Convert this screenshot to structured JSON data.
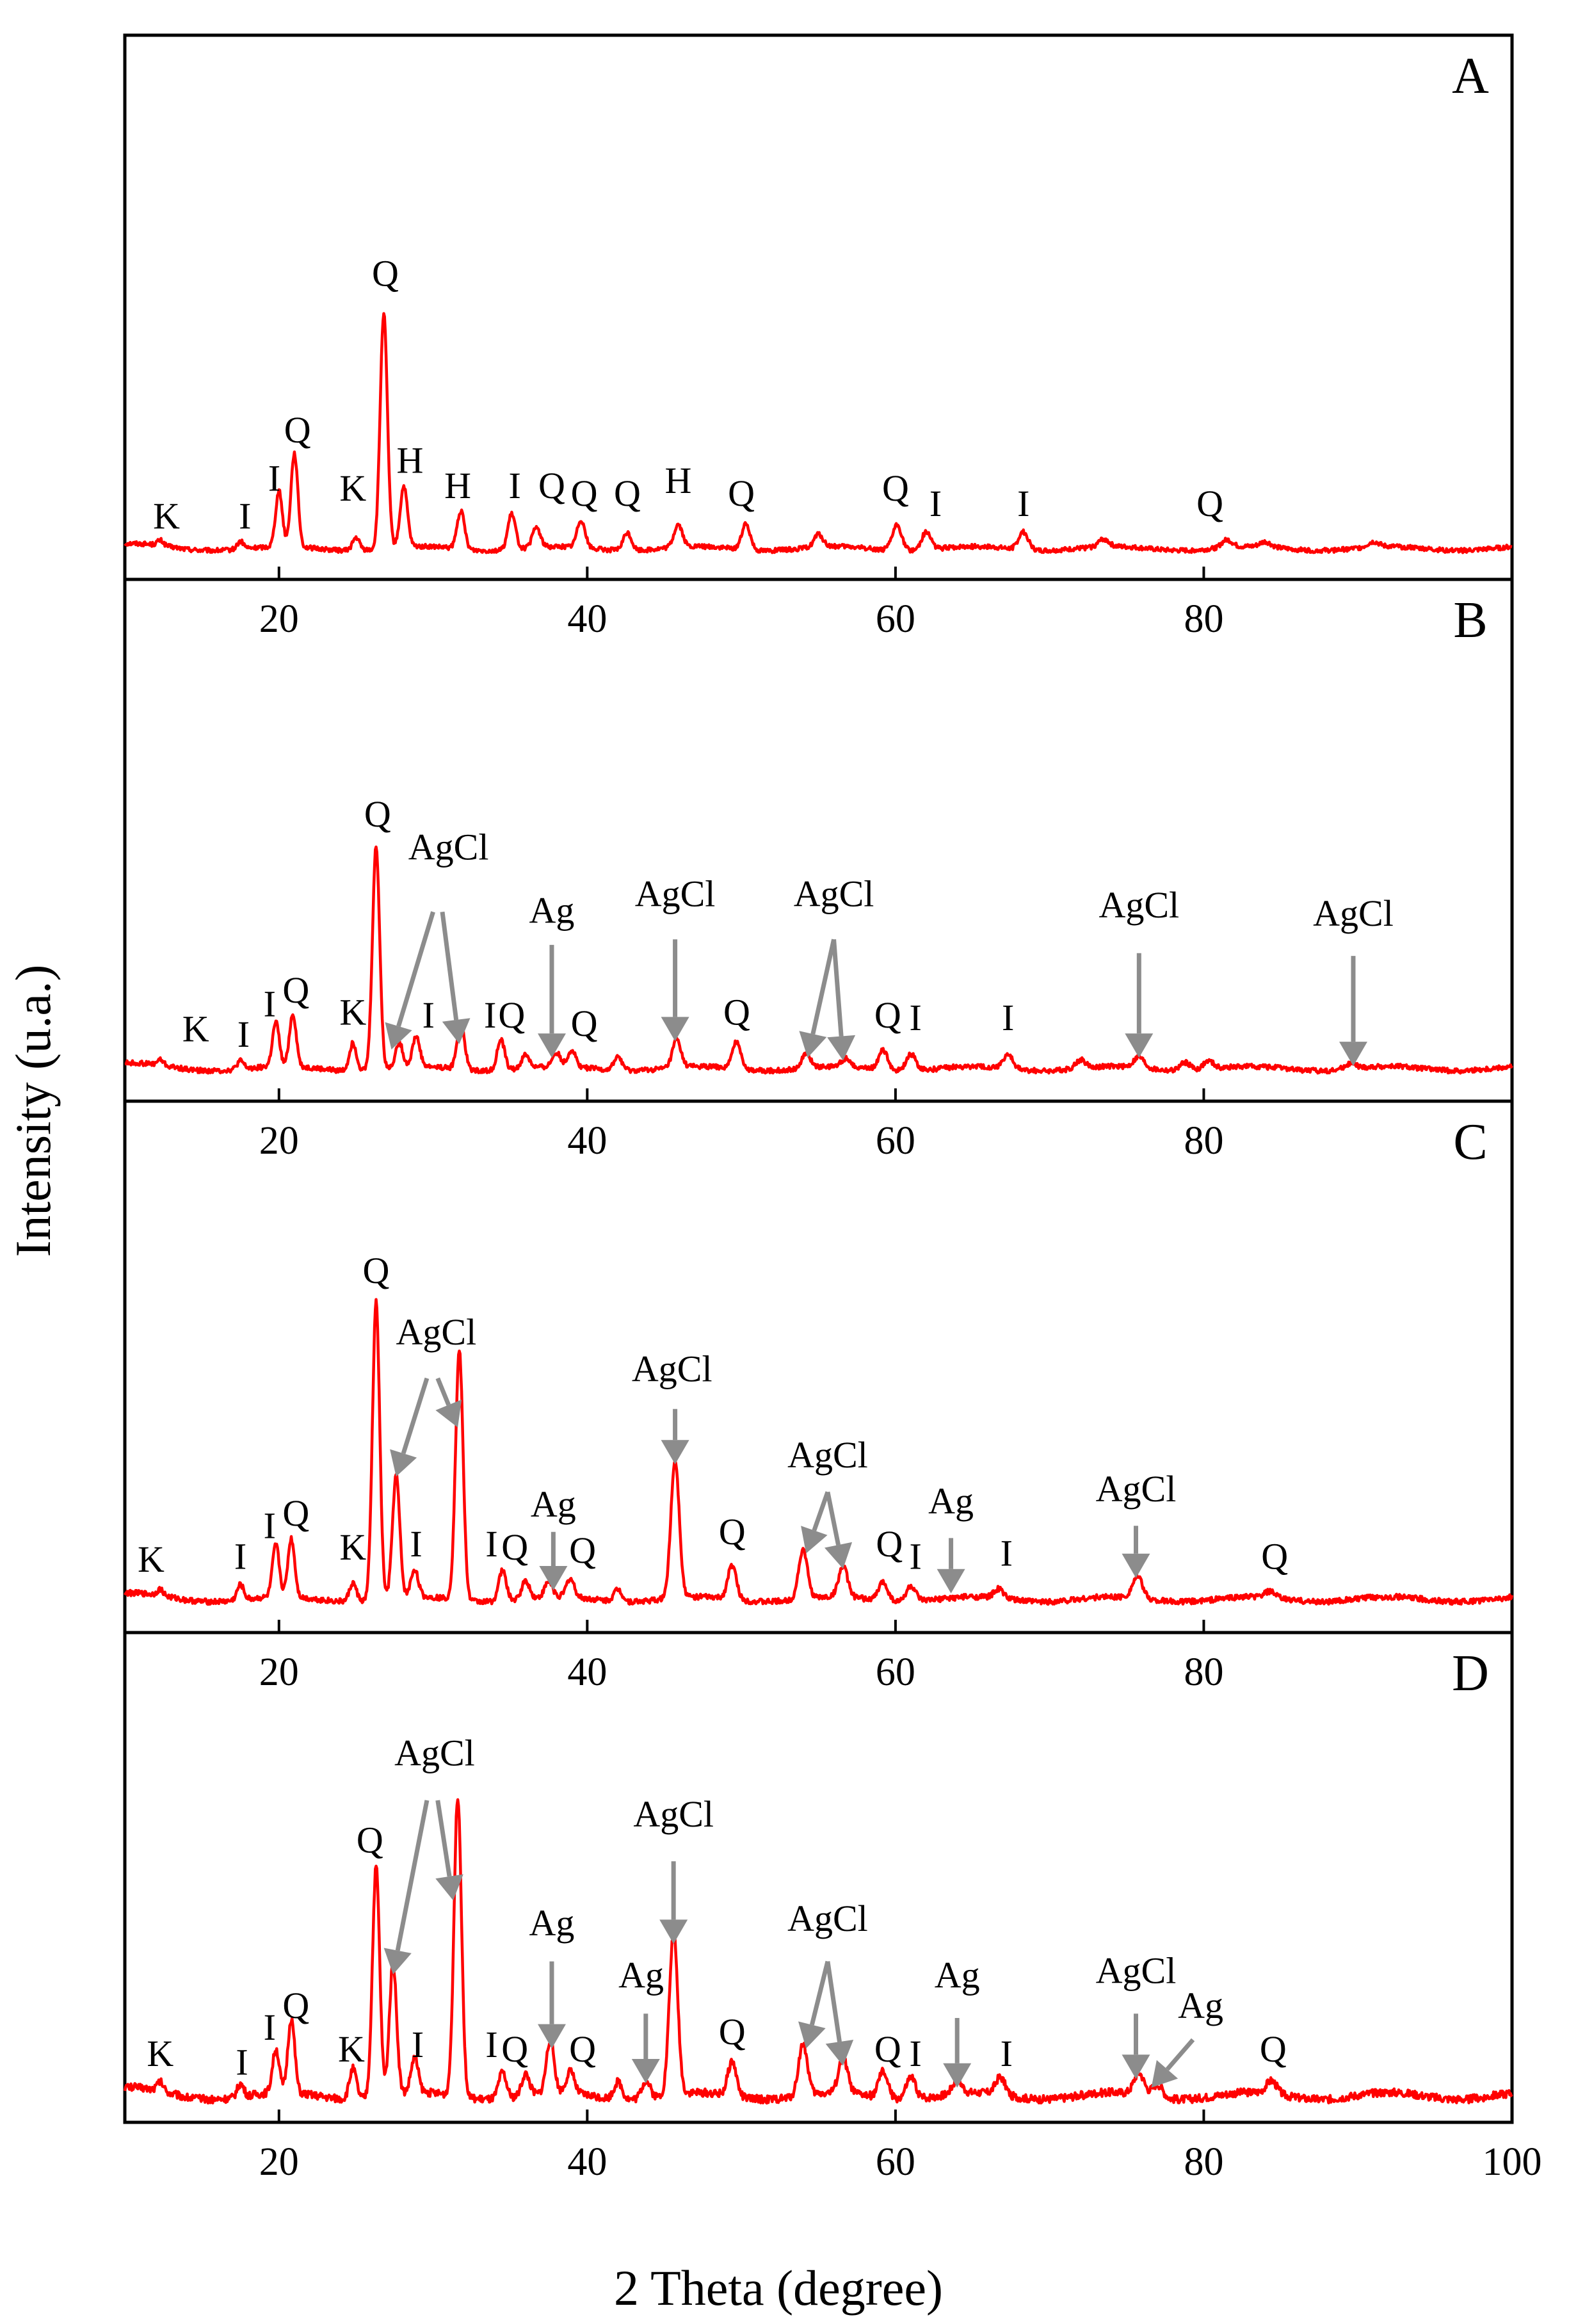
{
  "chart_data": {
    "type": "line",
    "x_range": [
      10,
      100
    ],
    "x_ticks": [
      "20",
      "40",
      "60",
      "80",
      "100"
    ],
    "xlabel": "2 Theta (degree)",
    "ylabel": "Intensity (u.a.)",
    "series_color": "#ff0000",
    "arrow_color": "#8c8c8c",
    "panels": [
      {
        "id": "A",
        "peaks": [
          {
            "x": 12.3,
            "h": 0.02
          },
          {
            "x": 17.5,
            "h": 0.03
          },
          {
            "x": 20.0,
            "h": 0.22
          },
          {
            "x": 21.0,
            "h": 0.37
          },
          {
            "x": 25.0,
            "h": 0.05
          },
          {
            "x": 26.8,
            "h": 0.93
          },
          {
            "x": 28.1,
            "h": 0.24
          },
          {
            "x": 31.8,
            "h": 0.15
          },
          {
            "x": 35.1,
            "h": 0.14
          },
          {
            "x": 36.7,
            "h": 0.08
          },
          {
            "x": 39.6,
            "h": 0.11
          },
          {
            "x": 42.6,
            "h": 0.07
          },
          {
            "x": 45.9,
            "h": 0.09
          },
          {
            "x": 50.3,
            "h": 0.1
          },
          {
            "x": 55.0,
            "h": 0.05
          },
          {
            "x": 60.1,
            "h": 0.1
          },
          {
            "x": 62.0,
            "h": 0.07
          },
          {
            "x": 68.3,
            "h": 0.07
          },
          {
            "x": 73.5,
            "h": 0.03
          },
          {
            "x": 81.5,
            "h": 0.03
          },
          {
            "x": 84.0,
            "h": 0.02
          },
          {
            "x": 91.0,
            "h": 0.02
          }
        ],
        "labels": [
          {
            "text": "K",
            "x": 12.7,
            "y": 0.1
          },
          {
            "text": "I",
            "x": 17.8,
            "y": 0.1
          },
          {
            "text": "I",
            "x": 19.7,
            "y": 0.25
          },
          {
            "text": "Q",
            "x": 21.2,
            "y": 0.44
          },
          {
            "text": "K",
            "x": 24.8,
            "y": 0.21
          },
          {
            "text": "Q",
            "x": 26.9,
            "y": 1.06
          },
          {
            "text": "H",
            "x": 28.5,
            "y": 0.32
          },
          {
            "text": "H",
            "x": 31.6,
            "y": 0.22
          },
          {
            "text": "I",
            "x": 35.3,
            "y": 0.22
          },
          {
            "text": "Q",
            "x": 37.7,
            "y": 0.22
          },
          {
            "text": "Q",
            "x": 39.8,
            "y": 0.19
          },
          {
            "text": "Q",
            "x": 42.6,
            "y": 0.19
          },
          {
            "text": "H",
            "x": 45.9,
            "y": 0.24
          },
          {
            "text": "Q",
            "x": 50.0,
            "y": 0.19
          },
          {
            "text": "Q",
            "x": 60.0,
            "y": 0.21
          },
          {
            "text": "I",
            "x": 62.6,
            "y": 0.15
          },
          {
            "text": "I",
            "x": 68.3,
            "y": 0.15
          },
          {
            "text": "Q",
            "x": 80.4,
            "y": 0.15
          }
        ],
        "arrows": []
      },
      {
        "id": "B",
        "peaks": [
          {
            "x": 12.3,
            "h": 0.02
          },
          {
            "x": 17.5,
            "h": 0.03
          },
          {
            "x": 19.8,
            "h": 0.16
          },
          {
            "x": 20.9,
            "h": 0.19
          },
          {
            "x": 24.8,
            "h": 0.1
          },
          {
            "x": 26.3,
            "h": 0.81
          },
          {
            "x": 27.8,
            "h": 0.09
          },
          {
            "x": 28.9,
            "h": 0.11
          },
          {
            "x": 31.8,
            "h": 0.17
          },
          {
            "x": 34.4,
            "h": 0.11
          },
          {
            "x": 36.0,
            "h": 0.05
          },
          {
            "x": 38.0,
            "h": 0.05
          },
          {
            "x": 39.0,
            "h": 0.06
          },
          {
            "x": 42.0,
            "h": 0.05
          },
          {
            "x": 45.8,
            "h": 0.1
          },
          {
            "x": 49.7,
            "h": 0.1
          },
          {
            "x": 54.2,
            "h": 0.05
          },
          {
            "x": 56.8,
            "h": 0.03
          },
          {
            "x": 59.2,
            "h": 0.07
          },
          {
            "x": 61.0,
            "h": 0.06
          },
          {
            "x": 67.3,
            "h": 0.05
          },
          {
            "x": 72.0,
            "h": 0.03
          },
          {
            "x": 75.8,
            "h": 0.04
          },
          {
            "x": 78.8,
            "h": 0.03
          },
          {
            "x": 80.3,
            "h": 0.03
          },
          {
            "x": 89.5,
            "h": 0.02
          }
        ],
        "labels": [
          {
            "text": "K",
            "x": 14.6,
            "y": 0.12
          },
          {
            "text": "I",
            "x": 17.7,
            "y": 0.1
          },
          {
            "text": "I",
            "x": 19.4,
            "y": 0.21
          },
          {
            "text": "Q",
            "x": 21.1,
            "y": 0.26
          },
          {
            "text": "K",
            "x": 24.8,
            "y": 0.18
          },
          {
            "text": "Q",
            "x": 26.4,
            "y": 0.9
          },
          {
            "text": "AgCl",
            "x": 31.0,
            "y": 0.78
          },
          {
            "text": "I",
            "x": 29.7,
            "y": 0.17
          },
          {
            "text": "I",
            "x": 33.7,
            "y": 0.17
          },
          {
            "text": "Q",
            "x": 35.1,
            "y": 0.17
          },
          {
            "text": "Ag",
            "x": 37.7,
            "y": 0.55
          },
          {
            "text": "Q",
            "x": 39.8,
            "y": 0.14
          },
          {
            "text": "AgCl",
            "x": 45.7,
            "y": 0.61
          },
          {
            "text": "Q",
            "x": 49.7,
            "y": 0.18
          },
          {
            "text": "AgCl",
            "x": 56.0,
            "y": 0.61
          },
          {
            "text": "Q",
            "x": 59.5,
            "y": 0.17
          },
          {
            "text": "I",
            "x": 61.3,
            "y": 0.16
          },
          {
            "text": "I",
            "x": 67.3,
            "y": 0.16
          },
          {
            "text": "AgCl",
            "x": 75.8,
            "y": 0.57
          },
          {
            "text": "AgCl",
            "x": 89.7,
            "y": 0.54
          }
        ],
        "arrows": [
          {
            "x1": 30.0,
            "y1": 0.59,
            "x2": 27.3,
            "y2": 0.09
          },
          {
            "x1": 30.6,
            "y1": 0.59,
            "x2": 31.7,
            "y2": 0.11
          },
          {
            "x1": 37.7,
            "y1": 0.47,
            "x2": 37.7,
            "y2": 0.06
          },
          {
            "x1": 45.7,
            "y1": 0.49,
            "x2": 45.7,
            "y2": 0.12
          },
          {
            "x1": 56.0,
            "y1": 0.49,
            "x2": 54.3,
            "y2": 0.06
          },
          {
            "x1": 56.0,
            "y1": 0.49,
            "x2": 56.6,
            "y2": 0.05
          },
          {
            "x1": 75.8,
            "y1": 0.44,
            "x2": 75.8,
            "y2": 0.06
          },
          {
            "x1": 89.7,
            "y1": 0.43,
            "x2": 89.7,
            "y2": 0.03
          }
        ]
      },
      {
        "id": "C",
        "peaks": [
          {
            "x": 12.3,
            "h": 0.02
          },
          {
            "x": 17.5,
            "h": 0.05
          },
          {
            "x": 19.8,
            "h": 0.17
          },
          {
            "x": 20.8,
            "h": 0.19
          },
          {
            "x": 24.8,
            "h": 0.06
          },
          {
            "x": 26.3,
            "h": 0.97
          },
          {
            "x": 27.6,
            "h": 0.4
          },
          {
            "x": 28.8,
            "h": 0.09
          },
          {
            "x": 31.7,
            "h": 0.81
          },
          {
            "x": 34.5,
            "h": 0.1
          },
          {
            "x": 36.0,
            "h": 0.06
          },
          {
            "x": 37.5,
            "h": 0.05
          },
          {
            "x": 38.9,
            "h": 0.06
          },
          {
            "x": 42.0,
            "h": 0.04
          },
          {
            "x": 45.7,
            "h": 0.45
          },
          {
            "x": 49.4,
            "h": 0.11
          },
          {
            "x": 54.0,
            "h": 0.16
          },
          {
            "x": 56.6,
            "h": 0.1
          },
          {
            "x": 59.2,
            "h": 0.06
          },
          {
            "x": 61.0,
            "h": 0.05
          },
          {
            "x": 66.7,
            "h": 0.03
          },
          {
            "x": 75.7,
            "h": 0.07
          },
          {
            "x": 84.3,
            "h": 0.02
          }
        ],
        "labels": [
          {
            "text": "K",
            "x": 11.7,
            "y": 0.11
          },
          {
            "text": "I",
            "x": 17.5,
            "y": 0.12
          },
          {
            "text": "I",
            "x": 19.4,
            "y": 0.22
          },
          {
            "text": "Q",
            "x": 21.1,
            "y": 0.26
          },
          {
            "text": "K",
            "x": 24.8,
            "y": 0.15
          },
          {
            "text": "Q",
            "x": 26.3,
            "y": 1.05
          },
          {
            "text": "AgCl",
            "x": 30.2,
            "y": 0.85
          },
          {
            "text": "I",
            "x": 28.9,
            "y": 0.16
          },
          {
            "text": "I",
            "x": 33.8,
            "y": 0.16
          },
          {
            "text": "Q",
            "x": 35.3,
            "y": 0.15
          },
          {
            "text": "Ag",
            "x": 37.8,
            "y": 0.29
          },
          {
            "text": "Q",
            "x": 39.7,
            "y": 0.14
          },
          {
            "text": "AgCl",
            "x": 45.5,
            "y": 0.73
          },
          {
            "text": "Q",
            "x": 49.4,
            "y": 0.2
          },
          {
            "text": "AgCl",
            "x": 55.6,
            "y": 0.45
          },
          {
            "text": "Q",
            "x": 59.6,
            "y": 0.16
          },
          {
            "text": "I",
            "x": 61.3,
            "y": 0.12
          },
          {
            "text": "Ag",
            "x": 63.6,
            "y": 0.3
          },
          {
            "text": "I",
            "x": 67.2,
            "y": 0.13
          },
          {
            "text": "AgCl",
            "x": 75.6,
            "y": 0.34
          },
          {
            "text": "Q",
            "x": 84.6,
            "y": 0.12
          }
        ],
        "arrows": [
          {
            "x1": 29.6,
            "y1": 0.74,
            "x2": 27.6,
            "y2": 0.42
          },
          {
            "x1": 30.3,
            "y1": 0.74,
            "x2": 31.6,
            "y2": 0.58
          },
          {
            "x1": 37.8,
            "y1": 0.24,
            "x2": 37.8,
            "y2": 0.05
          },
          {
            "x1": 45.7,
            "y1": 0.64,
            "x2": 45.7,
            "y2": 0.46
          },
          {
            "x1": 55.6,
            "y1": 0.37,
            "x2": 54.2,
            "y2": 0.17
          },
          {
            "x1": 55.6,
            "y1": 0.37,
            "x2": 56.6,
            "y2": 0.12
          },
          {
            "x1": 63.6,
            "y1": 0.22,
            "x2": 63.6,
            "y2": 0.04
          },
          {
            "x1": 75.6,
            "y1": 0.26,
            "x2": 75.6,
            "y2": 0.09
          }
        ]
      },
      {
        "id": "D",
        "peaks": [
          {
            "x": 12.3,
            "h": 0.02
          },
          {
            "x": 17.5,
            "h": 0.03
          },
          {
            "x": 19.8,
            "h": 0.1
          },
          {
            "x": 20.8,
            "h": 0.17
          },
          {
            "x": 24.8,
            "h": 0.07
          },
          {
            "x": 26.3,
            "h": 0.53
          },
          {
            "x": 27.4,
            "h": 0.3
          },
          {
            "x": 28.8,
            "h": 0.08
          },
          {
            "x": 31.6,
            "h": 0.69
          },
          {
            "x": 34.5,
            "h": 0.06
          },
          {
            "x": 36.0,
            "h": 0.05
          },
          {
            "x": 37.6,
            "h": 0.12
          },
          {
            "x": 38.9,
            "h": 0.05
          },
          {
            "x": 42.0,
            "h": 0.04
          },
          {
            "x": 43.8,
            "h": 0.04
          },
          {
            "x": 45.6,
            "h": 0.37
          },
          {
            "x": 49.4,
            "h": 0.08
          },
          {
            "x": 54.0,
            "h": 0.12
          },
          {
            "x": 56.6,
            "h": 0.08
          },
          {
            "x": 59.2,
            "h": 0.06
          },
          {
            "x": 61.0,
            "h": 0.05
          },
          {
            "x": 64.0,
            "h": 0.03
          },
          {
            "x": 66.8,
            "h": 0.04
          },
          {
            "x": 75.8,
            "h": 0.05
          },
          {
            "x": 77.0,
            "h": 0.03
          },
          {
            "x": 84.4,
            "h": 0.03
          }
        ],
        "labels": [
          {
            "text": "K",
            "x": 12.3,
            "y": 0.09
          },
          {
            "text": "I",
            "x": 17.6,
            "y": 0.07
          },
          {
            "text": "I",
            "x": 19.4,
            "y": 0.15
          },
          {
            "text": "Q",
            "x": 21.1,
            "y": 0.2
          },
          {
            "text": "K",
            "x": 24.7,
            "y": 0.1
          },
          {
            "text": "Q",
            "x": 25.9,
            "y": 0.58
          },
          {
            "text": "AgCl",
            "x": 30.1,
            "y": 0.78
          },
          {
            "text": "I",
            "x": 29.0,
            "y": 0.11
          },
          {
            "text": "I",
            "x": 33.8,
            "y": 0.11
          },
          {
            "text": "Q",
            "x": 35.3,
            "y": 0.1
          },
          {
            "text": "Ag",
            "x": 37.7,
            "y": 0.39
          },
          {
            "text": "Q",
            "x": 39.7,
            "y": 0.1
          },
          {
            "text": "Ag",
            "x": 43.5,
            "y": 0.27
          },
          {
            "text": "AgCl",
            "x": 45.6,
            "y": 0.64
          },
          {
            "text": "Q",
            "x": 49.4,
            "y": 0.14
          },
          {
            "text": "AgCl",
            "x": 55.6,
            "y": 0.4
          },
          {
            "text": "Q",
            "x": 59.5,
            "y": 0.1
          },
          {
            "text": "I",
            "x": 61.3,
            "y": 0.09
          },
          {
            "text": "Ag",
            "x": 64.0,
            "y": 0.27
          },
          {
            "text": "I",
            "x": 67.2,
            "y": 0.09
          },
          {
            "text": "AgCl",
            "x": 75.6,
            "y": 0.28
          },
          {
            "text": "Ag",
            "x": 79.8,
            "y": 0.2
          },
          {
            "text": "Q",
            "x": 84.5,
            "y": 0.1
          }
        ],
        "arrows": [
          {
            "x1": 29.6,
            "y1": 0.7,
            "x2": 27.4,
            "y2": 0.3
          },
          {
            "x1": 30.3,
            "y1": 0.7,
            "x2": 31.3,
            "y2": 0.47
          },
          {
            "x1": 37.7,
            "y1": 0.33,
            "x2": 37.7,
            "y2": 0.13
          },
          {
            "x1": 43.8,
            "y1": 0.21,
            "x2": 43.8,
            "y2": 0.05
          },
          {
            "x1": 45.6,
            "y1": 0.56,
            "x2": 45.6,
            "y2": 0.37
          },
          {
            "x1": 55.6,
            "y1": 0.33,
            "x2": 54.2,
            "y2": 0.13
          },
          {
            "x1": 55.6,
            "y1": 0.33,
            "x2": 56.6,
            "y2": 0.09
          },
          {
            "x1": 64.0,
            "y1": 0.2,
            "x2": 64.0,
            "y2": 0.04
          },
          {
            "x1": 75.6,
            "y1": 0.21,
            "x2": 75.6,
            "y2": 0.06
          },
          {
            "x1": 79.3,
            "y1": 0.15,
            "x2": 76.6,
            "y2": 0.04
          }
        ]
      }
    ]
  }
}
